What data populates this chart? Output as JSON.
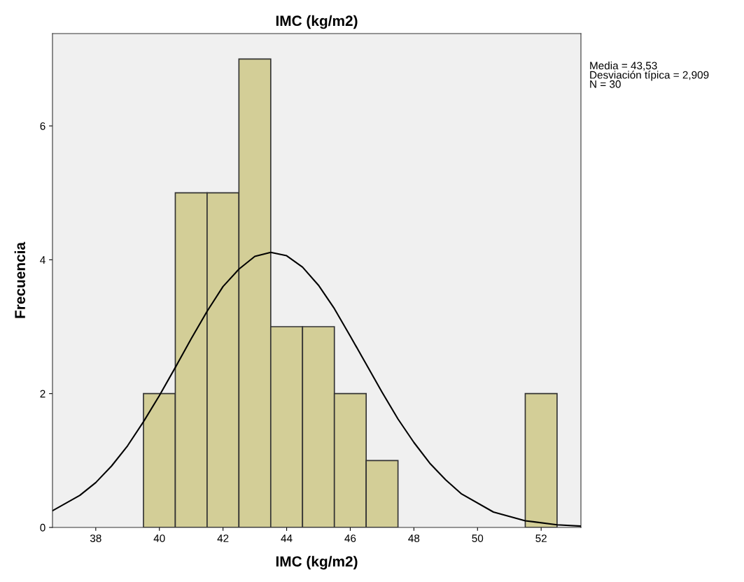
{
  "chart_data": {
    "type": "histogram",
    "title": "IMC (kg/m2)",
    "xlabel": "IMC (kg/m2)",
    "ylabel": "Frecuencia",
    "bins": [
      39.5,
      40.5,
      41.5,
      42.5,
      43.5,
      44.5,
      45.5,
      46.5,
      47.5,
      48.5,
      49.5,
      50.5,
      51.5,
      52.5
    ],
    "values": [
      2,
      5,
      5,
      7,
      3,
      3,
      2,
      1,
      0,
      0,
      0,
      0,
      2
    ],
    "color": "#d3ce97",
    "series": [
      {
        "type": "line",
        "color": "#000000",
        "x": [
          36.64,
          37.5,
          38,
          38.5,
          39,
          39.5,
          40,
          40.5,
          41,
          41.5,
          42,
          42.5,
          43,
          43.5,
          44,
          44.5,
          45,
          45.5,
          46,
          46.5,
          47,
          47.5,
          48,
          48.5,
          49,
          49.5,
          50.5,
          51.5,
          52.5,
          53.25
        ],
        "values": [
          0.25,
          0.48,
          0.67,
          0.92,
          1.22,
          1.58,
          1.97,
          2.39,
          2.82,
          3.23,
          3.6,
          3.86,
          4.05,
          4.11,
          4.06,
          3.89,
          3.62,
          3.27,
          2.86,
          2.44,
          2.02,
          1.62,
          1.27,
          0.96,
          0.71,
          0.5,
          0.23,
          0.1,
          0.04,
          0.02
        ]
      }
    ],
    "xlim": [
      36.64,
      53.25
    ],
    "ylim": [
      0,
      7.38
    ],
    "xticks": [
      38,
      40,
      42,
      44,
      46,
      48,
      50,
      52
    ],
    "yticks": [
      0,
      2,
      4,
      6
    ],
    "grid": false,
    "annotations": [
      "Media = 43,53\nDesviación típica = 2,909\nN = 30"
    ]
  }
}
